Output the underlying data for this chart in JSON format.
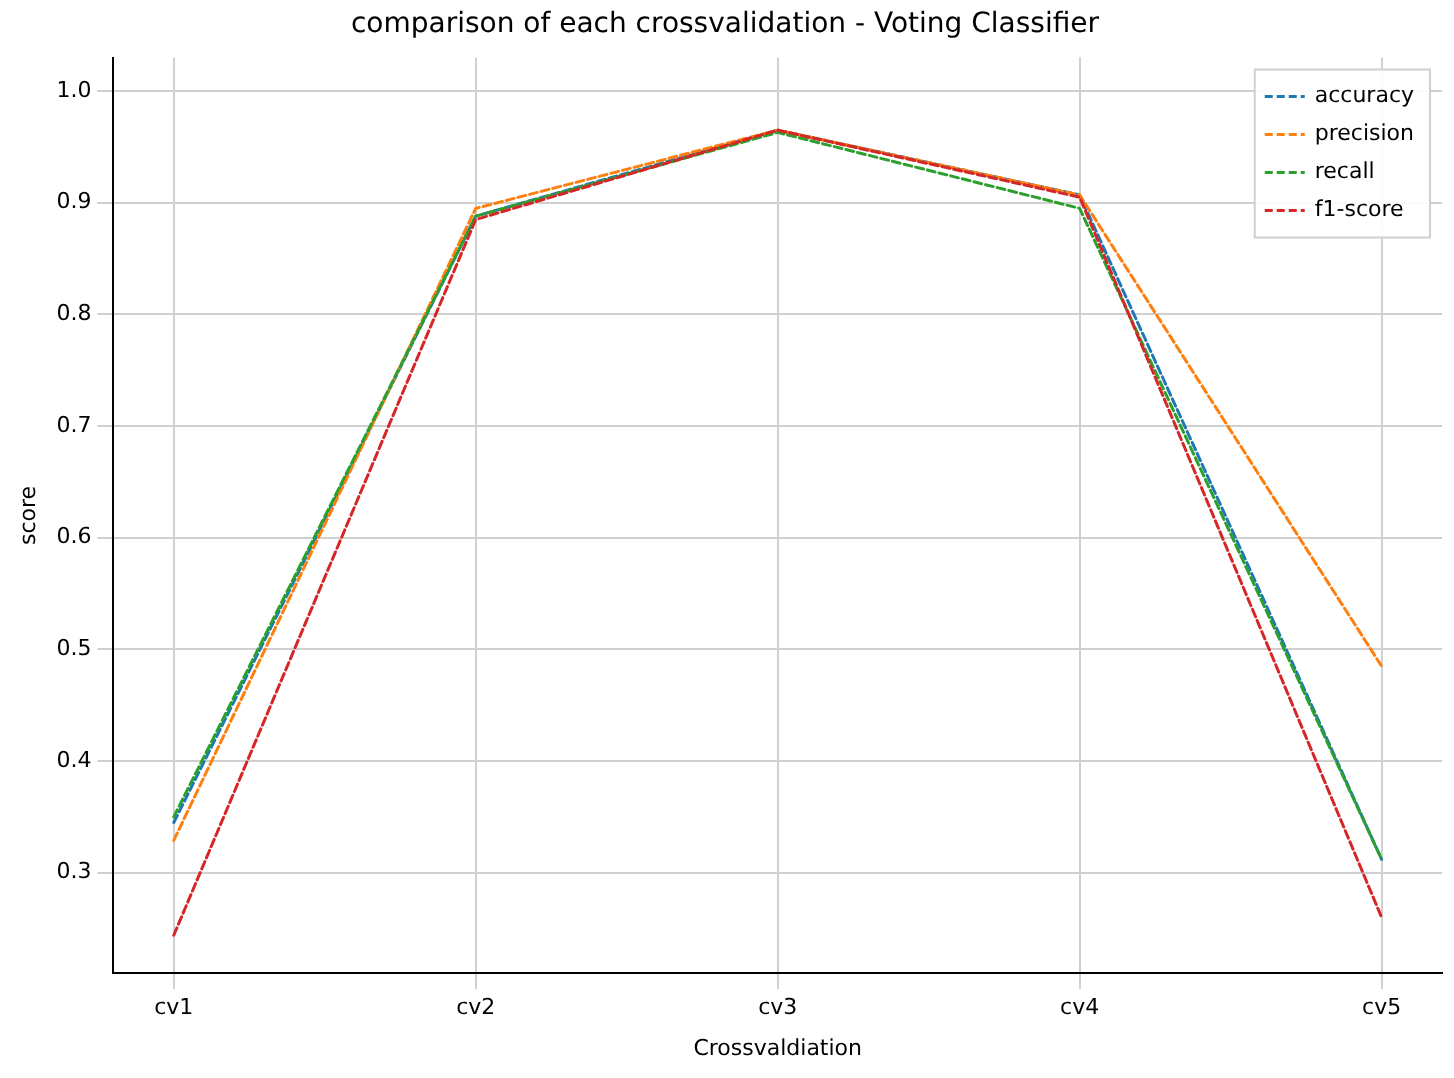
{
  "chart_data": {
    "type": "line",
    "title": "comparison of each crossvalidation - Voting Classifier",
    "xlabel": "Crossvaldiation",
    "ylabel": "score",
    "categories": [
      "cv1",
      "cv2",
      "cv3",
      "cv4",
      "cv5"
    ],
    "series": [
      {
        "name": "accuracy",
        "color": "#1f77b4",
        "values": [
          0.345,
          0.888,
          0.965,
          0.907,
          0.312
        ]
      },
      {
        "name": "precision",
        "color": "#ff7f0e",
        "values": [
          0.329,
          0.895,
          0.965,
          0.907,
          0.485
        ]
      },
      {
        "name": "recall",
        "color": "#2ca02c",
        "values": [
          0.35,
          0.888,
          0.963,
          0.895,
          0.312
        ]
      },
      {
        "name": "f1-score",
        "color": "#d62728",
        "values": [
          0.244,
          0.885,
          0.965,
          0.905,
          0.26
        ]
      }
    ],
    "ylim": [
      0.21,
      1.03
    ],
    "yticks": [
      0.3,
      0.4,
      0.5,
      0.6,
      0.7,
      0.8,
      0.9,
      {
        "value": 1,
        "label": "1.0"
      }
    ],
    "grid": true,
    "legend": "top right",
    "line_style": "dashed",
    "marker": "none"
  }
}
